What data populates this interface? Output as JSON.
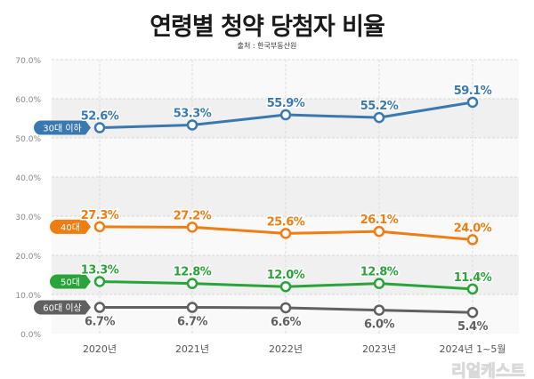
{
  "chart_data": {
    "type": "line",
    "title": "연령별 청약 당첨자 비율",
    "subtitle": "출처 : 한국부동산원",
    "categories": [
      "2020년",
      "2021년",
      "2022년",
      "2023년",
      "2024년 1~5월"
    ],
    "ylim": [
      0,
      70
    ],
    "yticks": [
      "0.0%",
      "10.0%",
      "20.0%",
      "30.0%",
      "40.0%",
      "50.0%",
      "60.0%",
      "70.0%"
    ],
    "grid": true,
    "legend": "inline-left",
    "series": [
      {
        "name": "30대 이하",
        "color": "#3a78b0",
        "values": [
          52.6,
          53.3,
          55.9,
          55.2,
          59.1
        ],
        "labels": [
          "52.6%",
          "53.3%",
          "55.9%",
          "55.2%",
          "59.1%"
        ],
        "label_pos": "above"
      },
      {
        "name": "40대",
        "color": "#f07d12",
        "values": [
          27.3,
          27.2,
          25.6,
          26.1,
          24.0
        ],
        "labels": [
          "27.3%",
          "27.2%",
          "25.6%",
          "26.1%",
          "24.0%"
        ],
        "label_pos": "above"
      },
      {
        "name": "50대",
        "color": "#2aa33a",
        "values": [
          13.3,
          12.8,
          12.0,
          12.8,
          11.4
        ],
        "labels": [
          "13.3%",
          "12.8%",
          "12.0%",
          "12.8%",
          "11.4%"
        ],
        "label_pos": "above"
      },
      {
        "name": "60대 이상",
        "color": "#606060",
        "values": [
          6.7,
          6.7,
          6.6,
          6.0,
          5.4
        ],
        "labels": [
          "6.7%",
          "6.7%",
          "6.6%",
          "6.0%",
          "5.4%"
        ],
        "label_pos": "below"
      }
    ]
  },
  "watermark": "리얼캐스트"
}
